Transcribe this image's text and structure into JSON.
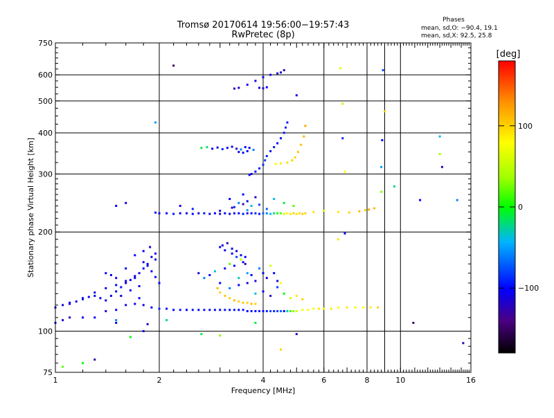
{
  "chart_data": {
    "type": "scatter",
    "title": "Tromsø 20170614 19:56:00−19:57:43",
    "subtitle": "RwPretec (8p)",
    "xlabel": "Frequency [MHz]",
    "ylabel": "Stationary phase Virtual Height [km]",
    "x_scale": "log",
    "y_scale": "log",
    "xlim": [
      1,
      16
    ],
    "ylim": [
      75,
      750
    ],
    "x_ticks": [
      1,
      2,
      4,
      6,
      8,
      10,
      16
    ],
    "x_tick_labels": [
      "1",
      "2",
      "4",
      "6",
      "8",
      "10",
      "16"
    ],
    "y_ticks": [
      75,
      100,
      200,
      300,
      400,
      500,
      600,
      750
    ],
    "y_tick_labels": [
      "75",
      "100",
      "200",
      "300",
      "400",
      "500",
      "600",
      "750"
    ],
    "grid": true,
    "stats": {
      "heading": "Phases",
      "line_o": "mean, sd,O: −90.4, 19.1",
      "line_x": "mean, sd,X:  92.5, 25.8"
    },
    "colorbar": {
      "label": "[deg]",
      "range": [
        -180,
        180
      ],
      "ticks": [
        100,
        0,
        -100
      ],
      "tick_labels": [
        "100",
        "0",
        "−100"
      ],
      "colormap": "rainbow"
    },
    "series": [
      {
        "trace": "f-region-main",
        "x": [
          1.95,
          2.0,
          2.1,
          2.2,
          2.3,
          2.4,
          2.5,
          2.6,
          2.7,
          2.8,
          2.9,
          3.0,
          3.1,
          3.2,
          3.3,
          3.4,
          3.5,
          3.6,
          3.7,
          3.8,
          3.9,
          4.0,
          4.1,
          4.2,
          4.3,
          4.4,
          4.5,
          4.6,
          4.7,
          4.8,
          4.9,
          5.0,
          5.1,
          5.2,
          5.3
        ],
        "y": [
          229,
          228,
          228,
          227,
          228,
          228,
          227,
          228,
          228,
          227,
          228,
          227,
          228,
          227,
          228,
          228,
          227,
          228,
          228,
          228,
          227,
          228,
          228,
          227,
          228,
          228,
          228,
          227,
          228,
          227,
          228,
          227,
          228,
          227,
          228
        ],
        "phase": [
          -100,
          -105,
          -100,
          -95,
          -100,
          -110,
          -100,
          -105,
          -95,
          -110,
          -100,
          -120,
          -100,
          -110,
          -105,
          -100,
          -95,
          -110,
          -100,
          -90,
          -95,
          -70,
          -60,
          -40,
          -20,
          0,
          20,
          60,
          80,
          90,
          100,
          90,
          95,
          100,
          100
        ]
      },
      {
        "trace": "f-region-scatter",
        "x": [
          2.3,
          2.5,
          3.2,
          3.4,
          3.6,
          3.7,
          3.8,
          3.3,
          3.5,
          3.9,
          4.1,
          4.3,
          4.6,
          4.9,
          3.0,
          3.5,
          1.5,
          1.6,
          3.25,
          3.6,
          5.6,
          6.0,
          6.6,
          7.1,
          7.6,
          7.9,
          8.1,
          8.4
        ],
        "y": [
          240,
          235,
          252,
          245,
          248,
          240,
          255,
          238,
          260,
          242,
          235,
          252,
          245,
          240,
          232,
          243,
          240,
          245,
          237,
          233,
          230,
          232,
          230,
          229,
          231,
          233,
          234,
          236
        ],
        "phase": [
          -110,
          -90,
          -100,
          -60,
          -110,
          -40,
          -120,
          -90,
          -100,
          -80,
          -70,
          -40,
          -10,
          20,
          -110,
          -130,
          -100,
          -110,
          -130,
          -50,
          90,
          60,
          90,
          100,
          110,
          100,
          120,
          110
        ]
      },
      {
        "trace": "f-high-cusp",
        "x": [
          3.65,
          3.7,
          3.8,
          3.9,
          4.0,
          4.05,
          4.1,
          4.2,
          4.3,
          4.4,
          4.5,
          4.6,
          4.65,
          4.7
        ],
        "y": [
          298,
          300,
          305,
          312,
          320,
          330,
          340,
          352,
          362,
          372,
          385,
          400,
          415,
          430
        ],
        "phase": [
          -110,
          -105,
          -100,
          -95,
          -90,
          -80,
          -90,
          -100,
          -95,
          -100,
          -100,
          -95,
          -90,
          -95
        ]
      },
      {
        "trace": "f-high-x-cusp",
        "x": [
          4.35,
          4.5,
          4.7,
          4.85,
          4.95,
          5.05,
          5.15,
          5.25,
          5.3
        ],
        "y": [
          322,
          323,
          325,
          330,
          337,
          350,
          368,
          390,
          420
        ],
        "phase": [
          80,
          90,
          95,
          100,
          100,
          105,
          110,
          115,
          120
        ]
      },
      {
        "trace": "high-cluster",
        "x": [
          2.65,
          2.75,
          2.85,
          2.95,
          3.05,
          3.15,
          3.25,
          3.35,
          3.45,
          3.55,
          3.65,
          3.75,
          3.4,
          3.5,
          3.6,
          3.9,
          4.0,
          4.1
        ],
        "y": [
          360,
          362,
          358,
          361,
          357,
          360,
          363,
          358,
          356,
          362,
          360,
          355,
          350,
          348,
          352,
          548,
          546,
          550
        ],
        "phase": [
          -10,
          -20,
          -100,
          -110,
          -90,
          -100,
          -110,
          -120,
          -60,
          -100,
          -110,
          -60,
          -110,
          -105,
          -100,
          -110,
          -120,
          -100
        ]
      },
      {
        "trace": "top-trace",
        "x": [
          3.3,
          3.4,
          3.6,
          3.8,
          4.0,
          4.2,
          4.4,
          4.5,
          4.6
        ],
        "y": [
          545,
          548,
          560,
          575,
          590,
          600,
          606,
          610,
          620
        ],
        "phase": [
          -120,
          -110,
          -100,
          -110,
          -100,
          -110,
          -120,
          -110,
          -120
        ]
      },
      {
        "trace": "e-region-main",
        "x": [
          1.0,
          1.05,
          1.1,
          1.2,
          1.3,
          1.4,
          1.5,
          1.6,
          1.7,
          1.8,
          1.9,
          2.0,
          2.1,
          2.2,
          2.3,
          2.4,
          2.5,
          2.6,
          2.7,
          2.8,
          2.9,
          3.0,
          3.1,
          3.2,
          3.3,
          3.4,
          3.5,
          3.6,
          3.7,
          3.8,
          3.9,
          4.0,
          4.1,
          4.2,
          4.3,
          4.4,
          4.5,
          4.6,
          4.7,
          4.8,
          4.9,
          5.0,
          5.2,
          5.4,
          5.6,
          5.8,
          6.0,
          6.3,
          6.6,
          7.0,
          7.4,
          7.8,
          8.2,
          8.6
        ],
        "y": [
          106,
          108,
          110,
          110,
          110,
          115,
          116,
          120,
          121,
          120,
          118,
          117,
          117,
          116,
          116,
          116,
          116,
          116,
          116,
          116,
          116,
          116,
          116,
          116,
          116,
          116,
          116,
          115,
          115,
          115,
          115,
          115,
          115,
          115,
          115,
          115,
          115,
          115,
          115,
          115,
          115,
          115,
          116,
          116,
          117,
          117,
          117,
          117,
          118,
          118,
          118,
          118,
          118,
          118
        ],
        "phase": [
          -110,
          -110,
          -115,
          -110,
          -105,
          -110,
          -105,
          -110,
          -105,
          -110,
          -100,
          -90,
          -95,
          -100,
          -95,
          -100,
          -95,
          -100,
          -95,
          -100,
          -95,
          -100,
          -95,
          -100,
          -95,
          -100,
          -95,
          -100,
          -95,
          -100,
          -95,
          -100,
          -90,
          -80,
          -90,
          -80,
          -70,
          -100,
          -30,
          10,
          30,
          60,
          70,
          80,
          70,
          90,
          80,
          90,
          80,
          90,
          70,
          80,
          90,
          100
        ]
      },
      {
        "trace": "e-region-spread",
        "x": [
          1.0,
          1.05,
          1.1,
          1.15,
          1.2,
          1.25,
          1.3,
          1.35,
          1.4,
          1.45,
          1.5,
          1.55,
          1.6,
          1.65,
          1.7,
          1.75,
          1.8,
          1.85,
          1.9,
          1.95,
          2.0,
          1.1,
          1.2,
          1.3,
          1.4,
          1.5,
          1.6,
          1.7,
          1.8,
          1.9,
          1.55,
          1.65,
          1.75,
          1.85,
          1.95,
          1.45,
          1.7,
          1.8,
          1.88,
          1.75,
          1.6,
          1.5,
          1.4,
          1.95
        ],
        "y": [
          118,
          120,
          121,
          123,
          125,
          127,
          128,
          126,
          124,
          128,
          132,
          136,
          140,
          143,
          145,
          150,
          155,
          158,
          152,
          146,
          140,
          122,
          126,
          131,
          135,
          138,
          142,
          147,
          162,
          168,
          128,
          133,
          137,
          160,
          165,
          148,
          170,
          175,
          180,
          126,
          155,
          145,
          150,
          172
        ],
        "phase": [
          -100,
          -110,
          -100,
          -110,
          -105,
          -100,
          -110,
          -100,
          -105,
          -110,
          -100,
          -95,
          -110,
          -100,
          -105,
          -110,
          -100,
          -105,
          -110,
          -95,
          -100,
          -100,
          -110,
          -105,
          -110,
          -100,
          -110,
          -105,
          -110,
          -110,
          -100,
          -105,
          -110,
          -100,
          -105,
          -105,
          -100,
          -105,
          -110,
          -100,
          -105,
          -110,
          -100,
          -105
        ]
      },
      {
        "trace": "e-cusp-x",
        "x": [
          2.95,
          3.0,
          3.1,
          3.2,
          3.3,
          3.4,
          3.5,
          3.6,
          3.7,
          3.8
        ],
        "y": [
          135,
          131,
          128,
          126,
          124,
          123,
          122,
          122,
          121,
          121
        ],
        "phase": [
          110,
          100,
          105,
          100,
          110,
          100,
          105,
          100,
          110,
          100
        ]
      },
      {
        "trace": "mid-scatter",
        "x": [
          2.6,
          2.7,
          2.8,
          2.9,
          3.0,
          3.1,
          3.2,
          3.3,
          3.4,
          3.5,
          3.6,
          3.7,
          3.8,
          3.9,
          4.0,
          4.1,
          4.2,
          4.3,
          4.4,
          4.5,
          3.0,
          3.1,
          3.25,
          3.35,
          3.45,
          3.55,
          3.2,
          3.4,
          3.6,
          3.8,
          4.0,
          4.2,
          4.4,
          4.6,
          4.8,
          5.0,
          5.2,
          3.05,
          3.15,
          3.25,
          3.35,
          3.45,
          3.55
        ],
        "y": [
          150,
          145,
          148,
          152,
          140,
          155,
          160,
          158,
          145,
          162,
          150,
          148,
          142,
          155,
          150,
          145,
          158,
          150,
          142,
          140,
          180,
          176,
          172,
          168,
          165,
          160,
          135,
          138,
          140,
          130,
          132,
          128,
          136,
          130,
          126,
          128,
          125,
          182,
          185,
          178,
          175,
          170,
          168
        ],
        "phase": [
          -110,
          -60,
          -100,
          -40,
          -100,
          -110,
          20,
          -100,
          -30,
          -110,
          -50,
          -100,
          -110,
          -60,
          -100,
          -110,
          60,
          -100,
          -110,
          80,
          -110,
          -105,
          -100,
          -80,
          40,
          -120,
          -60,
          -100,
          -110,
          -40,
          -100,
          -120,
          -80,
          0,
          60,
          90,
          100,
          -110,
          -120,
          -100,
          -110,
          -105,
          -100
        ]
      },
      {
        "trace": "sparse",
        "x": [
          2.2,
          1.95,
          1.2,
          1.05,
          1.65,
          1.8,
          1.5,
          2.65,
          3.0,
          5.0,
          6.7,
          6.8,
          6.8,
          6.9,
          8.9,
          9.0,
          8.85,
          8.8,
          8.8,
          9.6,
          10.9,
          11.4,
          13.0,
          13.0,
          13.2,
          14.6,
          15.2,
          1.3,
          1.5,
          1.85,
          4.5,
          3.8,
          2.1,
          6.6,
          6.9,
          5.0
        ],
        "y": [
          640,
          430,
          80,
          78,
          96,
          100,
          106,
          98,
          97,
          520,
          628,
          490,
          385,
          305,
          620,
          465,
          380,
          315,
          265,
          275,
          106,
          250,
          390,
          345,
          315,
          250,
          92,
          82,
          108,
          105,
          88,
          106,
          108,
          190,
          198,
          98
        ],
        "phase": [
          -150,
          -50,
          0,
          20,
          0,
          -100,
          -100,
          -10,
          30,
          -110,
          70,
          50,
          -90,
          80,
          -80,
          100,
          -100,
          -50,
          30,
          -20,
          -150,
          -100,
          -40,
          40,
          -120,
          -60,
          -120,
          -130,
          -60,
          -120,
          100,
          -10,
          -20,
          90,
          -100,
          -120
        ]
      }
    ]
  }
}
